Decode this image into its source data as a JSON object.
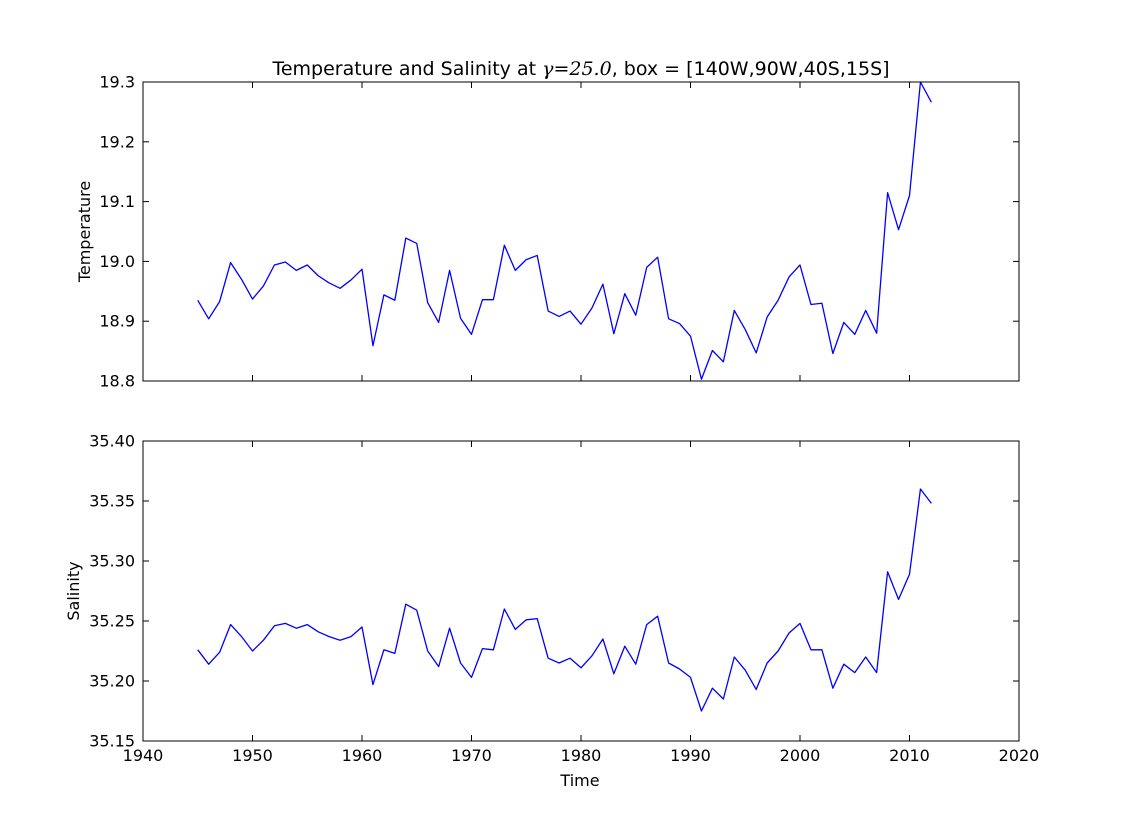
{
  "title": {
    "prefix": "Temperature and Salinity at ",
    "math": "γ=25.0",
    "suffix": ", box = [140W,90W,40S,15S]"
  },
  "colors": {
    "line": "#0000ff",
    "axes": "#000000",
    "background": "#ffffff"
  },
  "chart_data": [
    {
      "type": "line",
      "ylabel": "Temperature",
      "xlabel": "",
      "xlim": [
        1940,
        2020
      ],
      "ylim": [
        18.8,
        19.3
      ],
      "xticks": [
        1940,
        1950,
        1960,
        1970,
        1980,
        1990,
        2000,
        2010,
        2020
      ],
      "yticks": [
        "18.8",
        "18.9",
        "19.0",
        "19.1",
        "19.2",
        "19.3"
      ],
      "show_xtick_labels": false,
      "grid": false,
      "x": [
        1945,
        1946,
        1947,
        1948,
        1949,
        1950,
        1951,
        1952,
        1953,
        1954,
        1955,
        1956,
        1957,
        1958,
        1959,
        1960,
        1961,
        1962,
        1963,
        1964,
        1965,
        1966,
        1967,
        1968,
        1969,
        1970,
        1971,
        1972,
        1973,
        1974,
        1975,
        1976,
        1977,
        1978,
        1979,
        1980,
        1981,
        1982,
        1983,
        1984,
        1985,
        1986,
        1987,
        1988,
        1989,
        1990,
        1991,
        1992,
        1993,
        1994,
        1995,
        1996,
        1997,
        1998,
        1999,
        2000,
        2001,
        2002,
        2003,
        2004,
        2005,
        2006,
        2007,
        2008,
        2009,
        2010,
        2011,
        2012
      ],
      "series": [
        {
          "values": [
            18.935,
            18.904,
            18.933,
            18.998,
            18.97,
            18.937,
            18.959,
            18.994,
            18.999,
            18.985,
            18.994,
            18.976,
            18.964,
            18.955,
            18.969,
            18.987,
            18.859,
            18.944,
            18.935,
            19.039,
            19.03,
            18.931,
            18.898,
            18.985,
            18.905,
            18.878,
            18.936,
            18.936,
            19.027,
            18.985,
            19.003,
            19.01,
            18.917,
            18.908,
            18.917,
            18.895,
            18.922,
            18.962,
            18.879,
            18.946,
            18.91,
            18.99,
            19.007,
            18.904,
            18.896,
            18.875,
            18.803,
            18.851,
            18.832,
            18.918,
            18.886,
            18.847,
            18.907,
            18.935,
            18.974,
            18.994,
            18.928,
            18.93,
            18.846,
            18.898,
            18.878,
            18.918,
            18.88,
            19.115,
            19.053,
            19.11,
            19.3,
            19.266
          ]
        }
      ]
    },
    {
      "type": "line",
      "ylabel": "Salinity",
      "xlabel": "Time",
      "xlim": [
        1940,
        2020
      ],
      "ylim": [
        35.15,
        35.4
      ],
      "xticks": [
        1940,
        1950,
        1960,
        1970,
        1980,
        1990,
        2000,
        2010,
        2020
      ],
      "yticks": [
        "35.15",
        "35.20",
        "35.25",
        "35.30",
        "35.35",
        "35.40"
      ],
      "show_xtick_labels": true,
      "grid": false,
      "x": [
        1945,
        1946,
        1947,
        1948,
        1949,
        1950,
        1951,
        1952,
        1953,
        1954,
        1955,
        1956,
        1957,
        1958,
        1959,
        1960,
        1961,
        1962,
        1963,
        1964,
        1965,
        1966,
        1967,
        1968,
        1969,
        1970,
        1971,
        1972,
        1973,
        1974,
        1975,
        1976,
        1977,
        1978,
        1979,
        1980,
        1981,
        1982,
        1983,
        1984,
        1985,
        1986,
        1987,
        1988,
        1989,
        1990,
        1991,
        1992,
        1993,
        1994,
        1995,
        1996,
        1997,
        1998,
        1999,
        2000,
        2001,
        2002,
        2003,
        2004,
        2005,
        2006,
        2007,
        2008,
        2009,
        2010,
        2011,
        2012
      ],
      "series": [
        {
          "values": [
            35.226,
            35.214,
            35.224,
            35.247,
            35.237,
            35.225,
            35.234,
            35.246,
            35.248,
            35.244,
            35.247,
            35.241,
            35.237,
            35.234,
            35.237,
            35.245,
            35.197,
            35.226,
            35.223,
            35.264,
            35.259,
            35.225,
            35.212,
            35.244,
            35.215,
            35.203,
            35.227,
            35.226,
            35.26,
            35.243,
            35.251,
            35.252,
            35.219,
            35.215,
            35.219,
            35.211,
            35.221,
            35.235,
            35.206,
            35.229,
            35.214,
            35.247,
            35.254,
            35.215,
            35.21,
            35.203,
            35.175,
            35.194,
            35.185,
            35.22,
            35.209,
            35.193,
            35.215,
            35.225,
            35.24,
            35.248,
            35.226,
            35.226,
            35.194,
            35.214,
            35.207,
            35.22,
            35.207,
            35.291,
            35.268,
            35.289,
            35.36,
            35.348
          ]
        }
      ]
    }
  ]
}
